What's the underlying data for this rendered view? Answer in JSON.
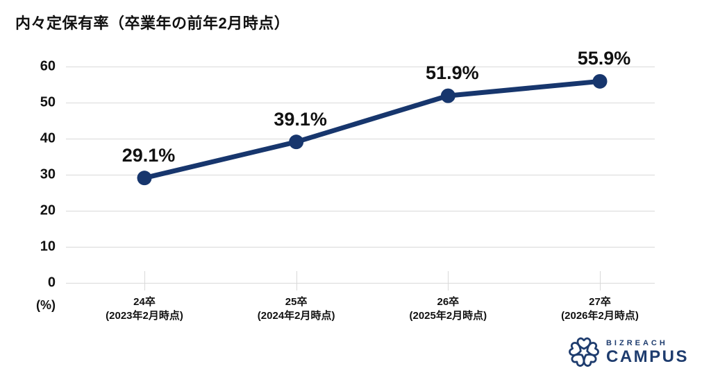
{
  "chart_data": {
    "type": "line",
    "title": "内々定保有率（卒業年の前年2月時点）",
    "categories": [
      {
        "label": "24卒",
        "sublabel": "(2023年2月時点)"
      },
      {
        "label": "25卒",
        "sublabel": "(2024年2月時点)"
      },
      {
        "label": "26卒",
        "sublabel": "(2025年2月時点)"
      },
      {
        "label": "27卒",
        "sublabel": "(2026年2月時点)"
      }
    ],
    "series": [
      {
        "name": "内々定保有率",
        "values": [
          29.1,
          39.1,
          51.9,
          55.9
        ]
      }
    ],
    "point_labels": [
      "29.1%",
      "39.1%",
      "51.9%",
      "55.9%"
    ],
    "yticks": [
      0,
      10,
      20,
      30,
      40,
      50,
      60
    ],
    "ylim": [
      0,
      60
    ],
    "unit_label": "(%)",
    "grid": true,
    "legend": "none",
    "colors": {
      "line": "#17366d",
      "grid": "#d9d9d9",
      "text": "#111111"
    }
  },
  "logo": {
    "icon": "sakura-flower-icon",
    "brand_top": "BIZREACH",
    "brand_bottom": "CAMPUS",
    "color": "#1e3c6e"
  }
}
